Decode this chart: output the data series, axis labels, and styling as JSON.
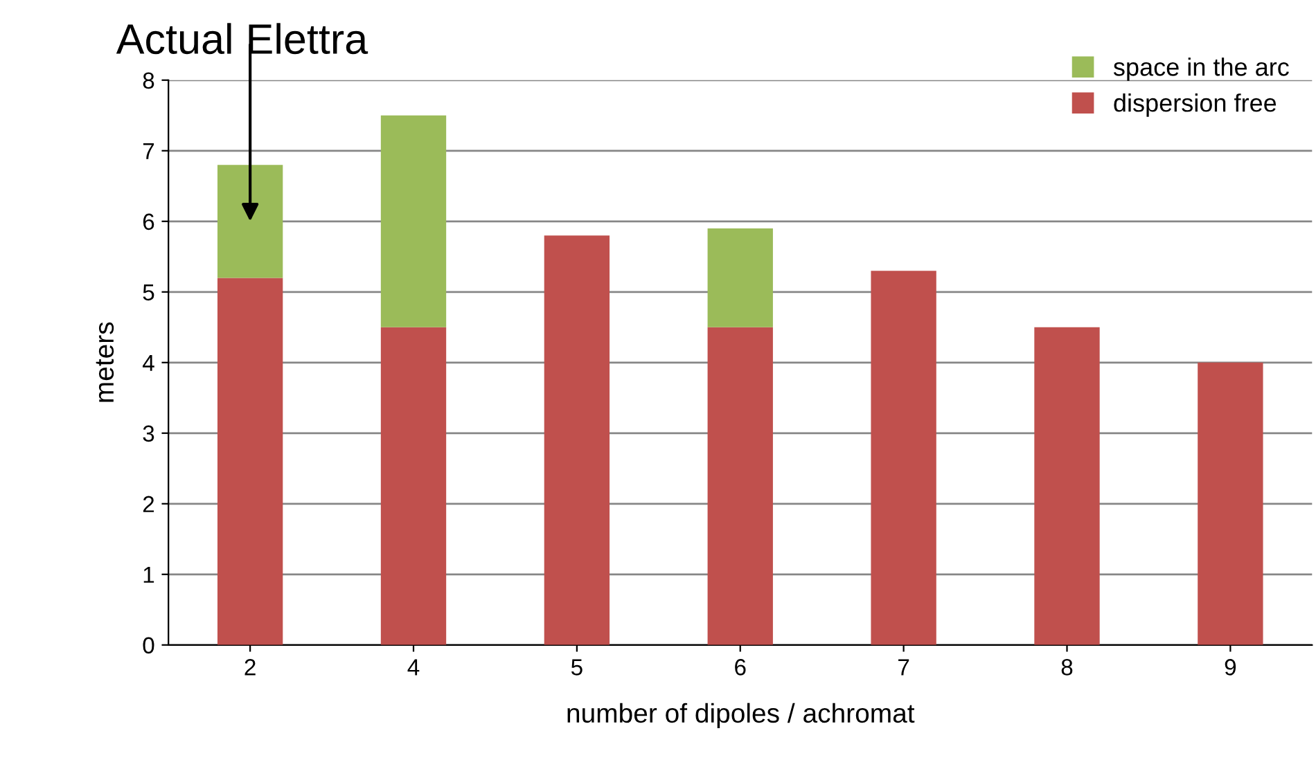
{
  "chart_data": {
    "type": "bar",
    "stacked": true,
    "xlabel": "number of dipoles / achromat",
    "ylabel": "meters",
    "categories": [
      "2",
      "4",
      "5",
      "6",
      "7",
      "8",
      "9"
    ],
    "series": [
      {
        "name": "dispersion free",
        "color": "#c0504d",
        "values": [
          5.2,
          4.5,
          5.8,
          4.5,
          5.3,
          4.5,
          4.0
        ]
      },
      {
        "name": "space in the arc",
        "color": "#9bbb59",
        "values": [
          1.6,
          3.0,
          null,
          1.4,
          null,
          null,
          null
        ]
      }
    ],
    "ylim": [
      0,
      8
    ],
    "yticks": [
      0,
      1,
      2,
      3,
      4,
      5,
      6,
      7,
      8
    ],
    "grid": "y",
    "legend": "top right",
    "annotations": [
      "Actual Elettra"
    ]
  }
}
